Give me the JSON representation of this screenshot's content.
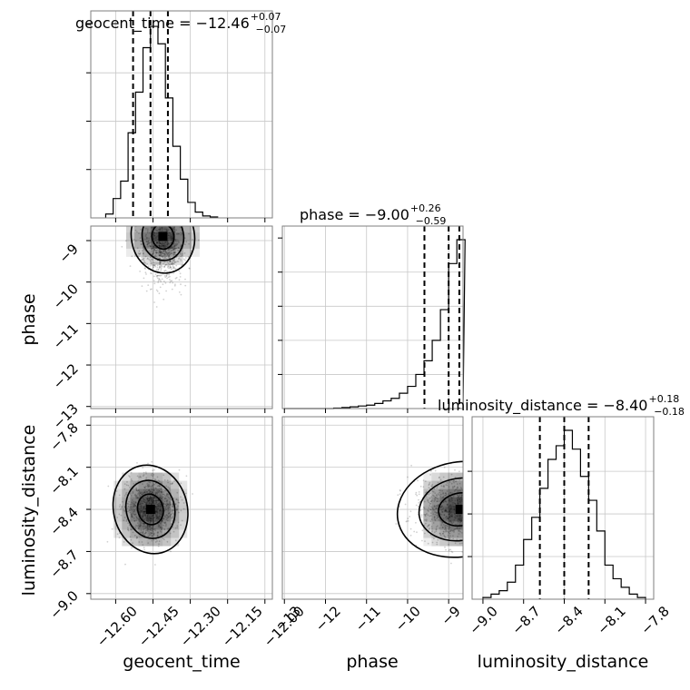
{
  "chart_data": [
    {
      "type": "histogram",
      "panel": "geocent_time",
      "title_main": "geocent_time = −12.46",
      "title_sup": "+0.07",
      "title_sub": "−0.07",
      "xlim": [
        -12.7,
        -11.97
      ],
      "bins": [
        -12.64,
        -12.61,
        -12.58,
        -12.55,
        -12.52,
        -12.49,
        -12.46,
        -12.43,
        -12.4,
        -12.37,
        -12.34,
        -12.31,
        -12.28,
        -12.25,
        -12.22
      ],
      "counts": [
        0.02,
        0.1,
        0.19,
        0.44,
        0.65,
        0.88,
        0.99,
        0.9,
        0.62,
        0.37,
        0.2,
        0.08,
        0.03,
        0.01,
        0.005
      ],
      "quantiles": [
        -12.53,
        -12.46,
        -12.39
      ],
      "grid": true
    },
    {
      "type": "scatter",
      "panel": "phase_vs_geocent_time",
      "xlim": [
        -12.7,
        -11.97
      ],
      "ylim": [
        -13.05,
        -8.65
      ],
      "ylabel": "phase",
      "yticks": [
        "−9",
        "−10",
        "−11",
        "−12",
        "−13"
      ],
      "yticks_values": [
        -9,
        -10,
        -11,
        -12,
        -13
      ],
      "mode": {
        "x": -12.41,
        "y": -8.9
      },
      "grid": true
    },
    {
      "type": "histogram",
      "panel": "phase",
      "title_main": "phase = −9.00",
      "title_sup": "+0.26",
      "title_sub": "−0.59",
      "xlim": [
        -13.05,
        -8.65
      ],
      "bins": [
        -13.0,
        -12.8,
        -12.6,
        -12.4,
        -12.2,
        -12.0,
        -11.8,
        -11.6,
        -11.4,
        -11.2,
        -11.0,
        -10.8,
        -10.6,
        -10.4,
        -10.2,
        -10.0,
        -9.8,
        -9.6,
        -9.4,
        -9.2,
        -9.0,
        -8.8
      ],
      "counts": [
        0.0,
        0.0,
        0.0,
        0.0,
        0.0,
        0.0,
        0.003,
        0.006,
        0.01,
        0.015,
        0.02,
        0.03,
        0.045,
        0.06,
        0.09,
        0.13,
        0.2,
        0.28,
        0.4,
        0.58,
        0.85,
        0.99
      ],
      "quantiles": [
        -9.59,
        -9.0,
        -8.74
      ],
      "grid": true
    },
    {
      "type": "scatter",
      "panel": "luminosity_distance_vs_geocent_time",
      "xlim": [
        -12.7,
        -11.97
      ],
      "ylim": [
        -9.04,
        -7.74
      ],
      "xlabel": "geocent_time",
      "ylabel": "luminosity_distance",
      "xticks": [
        "−12.60",
        "−12.45",
        "−12.30",
        "−12.15",
        "−12.00"
      ],
      "xticks_values": [
        -12.6,
        -12.45,
        -12.3,
        -12.15,
        -12.0
      ],
      "yticks": [
        "−7.8",
        "−8.1",
        "−8.4",
        "−8.7",
        "−9.0"
      ],
      "yticks_values": [
        -7.8,
        -8.1,
        -8.4,
        -8.7,
        -9.0
      ],
      "mode": {
        "x": -12.46,
        "y": -8.4
      },
      "grid": true
    },
    {
      "type": "scatter",
      "panel": "luminosity_distance_vs_phase",
      "xlim": [
        -13.05,
        -8.65
      ],
      "ylim": [
        -9.04,
        -7.74
      ],
      "xlabel": "phase",
      "xticks": [
        "−13",
        "−12",
        "−11",
        "−10",
        "−9"
      ],
      "xticks_values": [
        -13,
        -12,
        -11,
        -10,
        -9
      ],
      "mode": {
        "x": -8.72,
        "y": -8.4
      },
      "grid": true
    },
    {
      "type": "histogram",
      "panel": "luminosity_distance",
      "title_main": "luminosity_distance = −8.40",
      "title_sup": "+0.18",
      "title_sub": "−0.18",
      "xlim": [
        -9.08,
        -7.74
      ],
      "xlabel": "luminosity_distance",
      "xticks": [
        "−9.0",
        "−8.7",
        "−8.4",
        "−8.1",
        "−7.8"
      ],
      "xticks_values": [
        -9.0,
        -8.7,
        -8.4,
        -8.1,
        -7.8
      ],
      "bins": [
        -9.0,
        -8.94,
        -8.88,
        -8.82,
        -8.76,
        -8.7,
        -8.64,
        -8.58,
        -8.52,
        -8.46,
        -8.4,
        -8.34,
        -8.28,
        -8.22,
        -8.16,
        -8.1,
        -8.04,
        -7.98,
        -7.92,
        -7.86,
        -7.8
      ],
      "counts": [
        0.01,
        0.03,
        0.05,
        0.1,
        0.2,
        0.35,
        0.48,
        0.65,
        0.82,
        0.9,
        0.99,
        0.88,
        0.72,
        0.58,
        0.4,
        0.2,
        0.12,
        0.07,
        0.03,
        0.01
      ],
      "quantiles": [
        -8.58,
        -8.4,
        -8.22
      ],
      "grid": true
    }
  ]
}
